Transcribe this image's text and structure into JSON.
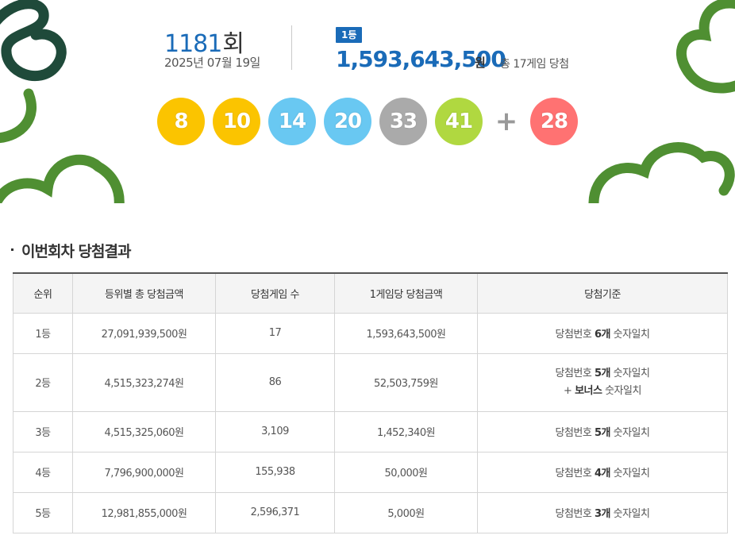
{
  "draw": {
    "number": "1181",
    "unit": "회",
    "date": "2025년 07월 19일"
  },
  "first_prize": {
    "badge": "1등",
    "amount": "1,593,643,500",
    "unit": "원",
    "winners_text": "총 17게임 당첨"
  },
  "winning_numbers": [
    {
      "value": "8",
      "color": "#fbc400"
    },
    {
      "value": "10",
      "color": "#fbc400"
    },
    {
      "value": "14",
      "color": "#69c8f2"
    },
    {
      "value": "20",
      "color": "#69c8f2"
    },
    {
      "value": "33",
      "color": "#aaaaaa"
    },
    {
      "value": "41",
      "color": "#b0d840"
    }
  ],
  "plus_sign": "+",
  "bonus_number": {
    "value": "28",
    "color": "#ff7272"
  },
  "section": {
    "title": "이번회차 당첨결과"
  },
  "table": {
    "headers": [
      "순위",
      "등위별 총 당첨금액",
      "당첨게임 수",
      "1게임당 당첨금액",
      "당첨기준"
    ],
    "rows": [
      {
        "rank": "1등",
        "total": "27,091,939,500원",
        "games": "17",
        "per_game": "1,593,643,500원",
        "crit_pre": "당첨번호 ",
        "crit_bold": "6개",
        "crit_post": " 숫자일치"
      },
      {
        "rank": "2등",
        "total": "4,515,323,274원",
        "games": "86",
        "per_game": "52,503,759원",
        "crit_pre": "당첨번호 ",
        "crit_bold": "5개",
        "crit_post": " 숫자일치",
        "crit2_pre": "+ ",
        "crit2_bold": "보너스",
        "crit2_post": " 숫자일치"
      },
      {
        "rank": "3등",
        "total": "4,515,325,060원",
        "games": "3,109",
        "per_game": "1,452,340원",
        "crit_pre": "당첨번호 ",
        "crit_bold": "5개",
        "crit_post": " 숫자일치"
      },
      {
        "rank": "4등",
        "total": "7,796,900,000원",
        "games": "155,938",
        "per_game": "50,000원",
        "crit_pre": "당첨번호 ",
        "crit_bold": "4개",
        "crit_post": " 숫자일치"
      },
      {
        "rank": "5등",
        "total": "12,981,855,000원",
        "games": "2,596,371",
        "per_game": "5,000원",
        "crit_pre": "당첨번호 ",
        "crit_bold": "3개",
        "crit_post": " 숫자일치"
      }
    ]
  },
  "colors": {
    "accent_blue": "#1a6bb8",
    "deco_dark_green": "#1f4a3a",
    "deco_green": "#4f8f32"
  }
}
